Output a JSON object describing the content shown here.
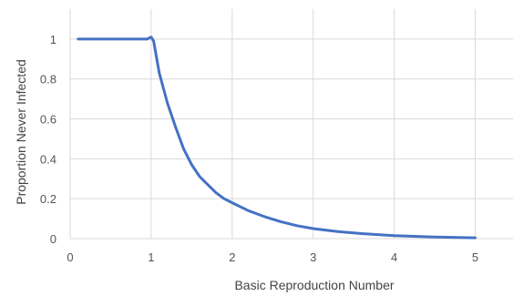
{
  "chart_data": {
    "type": "line",
    "title": "",
    "xlabel": "Basic Reproduction Number",
    "ylabel": "Proportion Never Infected",
    "xlim": [
      0,
      5.5
    ],
    "ylim": [
      0,
      1.15
    ],
    "grid": true,
    "x_ticks": [
      0,
      1,
      2,
      3,
      4,
      5
    ],
    "y_ticks": [
      0,
      0.2,
      0.4,
      0.6,
      0.8,
      1
    ],
    "x_tick_labels": [
      "0",
      "1",
      "2",
      "3",
      "4",
      "5"
    ],
    "y_tick_labels": [
      "0",
      "0.2",
      "0.4",
      "0.6",
      "0.8",
      "1"
    ],
    "colors": {
      "series": "#4472c4",
      "grid": "#d9d9d9"
    },
    "series": [
      {
        "x": [
          0.1,
          0.5,
          0.95,
          1.0,
          1.03,
          1.1,
          1.2,
          1.3,
          1.4,
          1.5,
          1.6,
          1.7,
          1.8,
          1.9,
          2.0,
          2.2,
          2.4,
          2.6,
          2.8,
          3.0,
          3.3,
          3.6,
          4.0,
          4.5,
          5.0
        ],
        "y": [
          1,
          1,
          1,
          1.01,
          0.99,
          0.83,
          0.68,
          0.56,
          0.45,
          0.37,
          0.31,
          0.27,
          0.23,
          0.2,
          0.18,
          0.14,
          0.11,
          0.085,
          0.065,
          0.05,
          0.035,
          0.025,
          0.015,
          0.008,
          0.004
        ]
      }
    ]
  }
}
